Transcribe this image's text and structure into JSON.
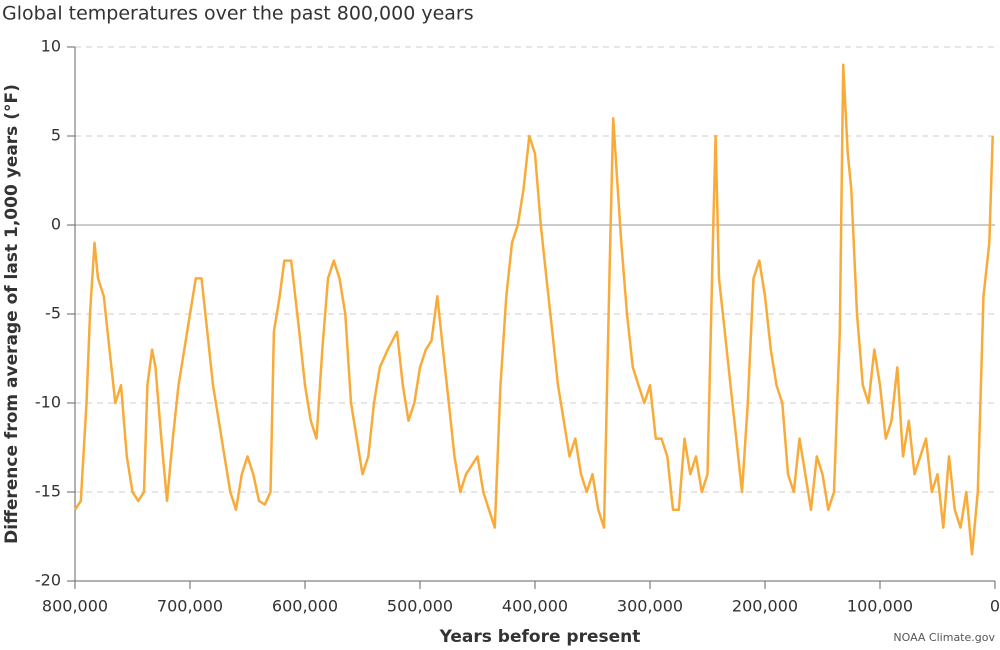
{
  "chart_data": {
    "type": "line",
    "title": "Global temperatures over the past 800,000 years",
    "x_label": "Years before present",
    "y_label": "Difference from average of last 1,000 years (°F)",
    "source": "NOAA Climate.gov",
    "xlim": [
      800000,
      0
    ],
    "xticks": [
      {
        "value": 800000,
        "label": "800,000"
      },
      {
        "value": 700000,
        "label": "700,000"
      },
      {
        "value": 600000,
        "label": "600,000"
      },
      {
        "value": 500000,
        "label": "500,000"
      },
      {
        "value": 400000,
        "label": "400,000"
      },
      {
        "value": 300000,
        "label": "300,000"
      },
      {
        "value": 200000,
        "label": "200,000"
      },
      {
        "value": 100000,
        "label": "100,000"
      },
      0
    ],
    "ylim": [
      -20,
      10
    ],
    "yticks": [
      -20,
      -15,
      -10,
      -5,
      0,
      5,
      10
    ],
    "grid": true,
    "series": [
      {
        "color": "#f9ab3a",
        "x": [
          800000,
          795000,
          790000,
          787000,
          783000,
          780000,
          775000,
          770000,
          765000,
          760000,
          755000,
          750000,
          745000,
          740000,
          737000,
          733000,
          730000,
          725000,
          720000,
          715000,
          710000,
          705000,
          700000,
          695000,
          690000,
          685000,
          680000,
          675000,
          670000,
          665000,
          660000,
          655000,
          650000,
          645000,
          640000,
          635000,
          630000,
          627000,
          622000,
          618000,
          612000,
          605000,
          600000,
          595000,
          590000,
          585000,
          580000,
          575000,
          570000,
          565000,
          560000,
          555000,
          550000,
          545000,
          540000,
          535000,
          528000,
          520000,
          515000,
          510000,
          505000,
          500000,
          495000,
          490000,
          485000,
          480000,
          475000,
          470000,
          465000,
          460000,
          455000,
          450000,
          445000,
          440000,
          435000,
          430000,
          425000,
          420000,
          415000,
          410000,
          405000,
          400000,
          395000,
          390000,
          385000,
          380000,
          375000,
          370000,
          365000,
          360000,
          355000,
          350000,
          345000,
          340000,
          335000,
          332000,
          328000,
          325000,
          320000,
          315000,
          310000,
          305000,
          300000,
          295000,
          290000,
          285000,
          280000,
          275000,
          270000,
          265000,
          260000,
          255000,
          250000,
          245000,
          243000,
          240000,
          235000,
          230000,
          225000,
          220000,
          215000,
          210000,
          205000,
          200000,
          195000,
          190000,
          185000,
          180000,
          175000,
          170000,
          165000,
          160000,
          155000,
          150000,
          145000,
          140000,
          135000,
          132000,
          128000,
          125000,
          120000,
          115000,
          110000,
          105000,
          100000,
          95000,
          90000,
          85000,
          80000,
          75000,
          70000,
          65000,
          60000,
          55000,
          50000,
          45000,
          40000,
          35000,
          30000,
          25000,
          20000,
          15000,
          10000,
          5000,
          2000
        ],
        "values": [
          -16,
          -15.5,
          -10,
          -5,
          -1,
          -3,
          -4,
          -7,
          -10,
          -9,
          -13,
          -15,
          -15.5,
          -15,
          -9,
          -7,
          -8,
          -12,
          -15.5,
          -12,
          -9,
          -7,
          -5,
          -3,
          -3,
          -6,
          -9,
          -11,
          -13,
          -15,
          -16,
          -14,
          -13,
          -14,
          -15.5,
          -15.7,
          -15,
          -6,
          -4,
          -2,
          -2,
          -6,
          -9,
          -11,
          -12,
          -7,
          -3,
          -2,
          -3,
          -5,
          -10,
          -12,
          -14,
          -13,
          -10,
          -8,
          -7,
          -6,
          -9,
          -11,
          -10,
          -8,
          -7,
          -6.5,
          -4,
          -7,
          -10,
          -13,
          -15,
          -14,
          -13.5,
          -13,
          -15,
          -16,
          -17,
          -9,
          -4,
          -1,
          0,
          2,
          5,
          4,
          0,
          -3,
          -6,
          -9,
          -11,
          -13,
          -12,
          -14,
          -15,
          -14,
          -16,
          -17,
          -2,
          6,
          2,
          -1,
          -5,
          -8,
          -9,
          -10,
          -9,
          -12,
          -12,
          -13,
          -16,
          -16,
          -12,
          -14,
          -13,
          -15,
          -14,
          0,
          5,
          -3,
          -6,
          -9,
          -12,
          -15,
          -10,
          -3,
          -2,
          -4,
          -7,
          -9,
          -10,
          -14,
          -15,
          -12,
          -14,
          -16,
          -13,
          -14,
          -16,
          -15,
          -6,
          9,
          4,
          2,
          -5,
          -9,
          -10,
          -7,
          -9,
          -12,
          -11,
          -8,
          -13,
          -11,
          -14,
          -13,
          -12,
          -15,
          -14,
          -17,
          -13,
          -16,
          -17,
          -15,
          -18.5,
          -15,
          -4,
          -1,
          5
        ]
      }
    ]
  }
}
